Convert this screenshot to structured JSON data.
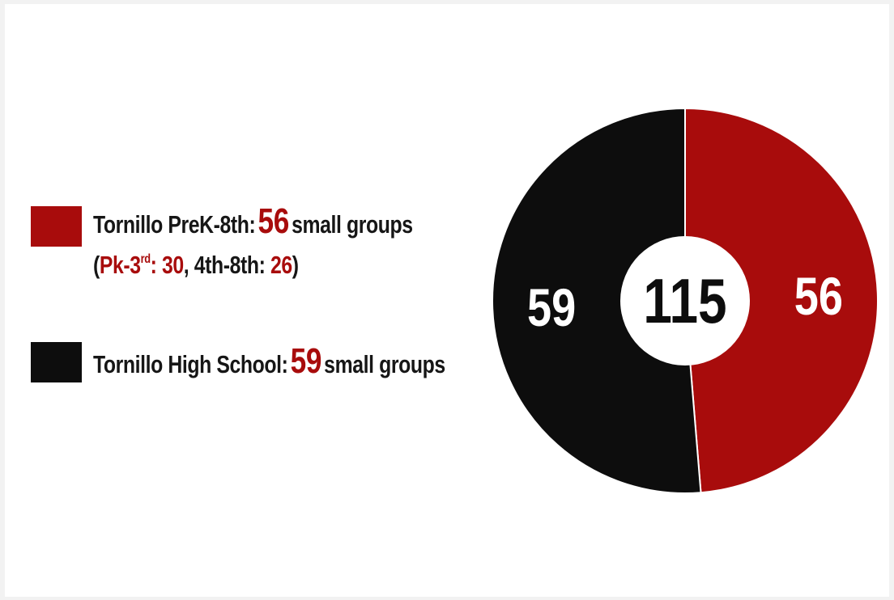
{
  "colors": {
    "prek8": "#a80c0c",
    "high_school": "#0d0d0d",
    "center": "#ffffff"
  },
  "legend": {
    "prek8": {
      "label": "Tornillo PreK-8th:",
      "value": "56",
      "suffix": "small groups",
      "detail": {
        "open": "(",
        "pk_label": "Pk-3",
        "pk_sup": "rd",
        "pk_colon": ":",
        "pk_value": "30",
        "sep": ", 4th-8th: ",
        "g48_value": "26",
        "close": ")"
      }
    },
    "high_school": {
      "label": "Tornillo High School:",
      "value": "59",
      "suffix": "small groups"
    }
  },
  "chart_data": {
    "type": "pie",
    "donut": true,
    "total_label": "115",
    "slices": [
      {
        "label": "Tornillo PreK-8th",
        "value": 56,
        "color": "#a80c0c"
      },
      {
        "label": "Tornillo High School",
        "value": 59,
        "color": "#0d0d0d"
      }
    ]
  }
}
